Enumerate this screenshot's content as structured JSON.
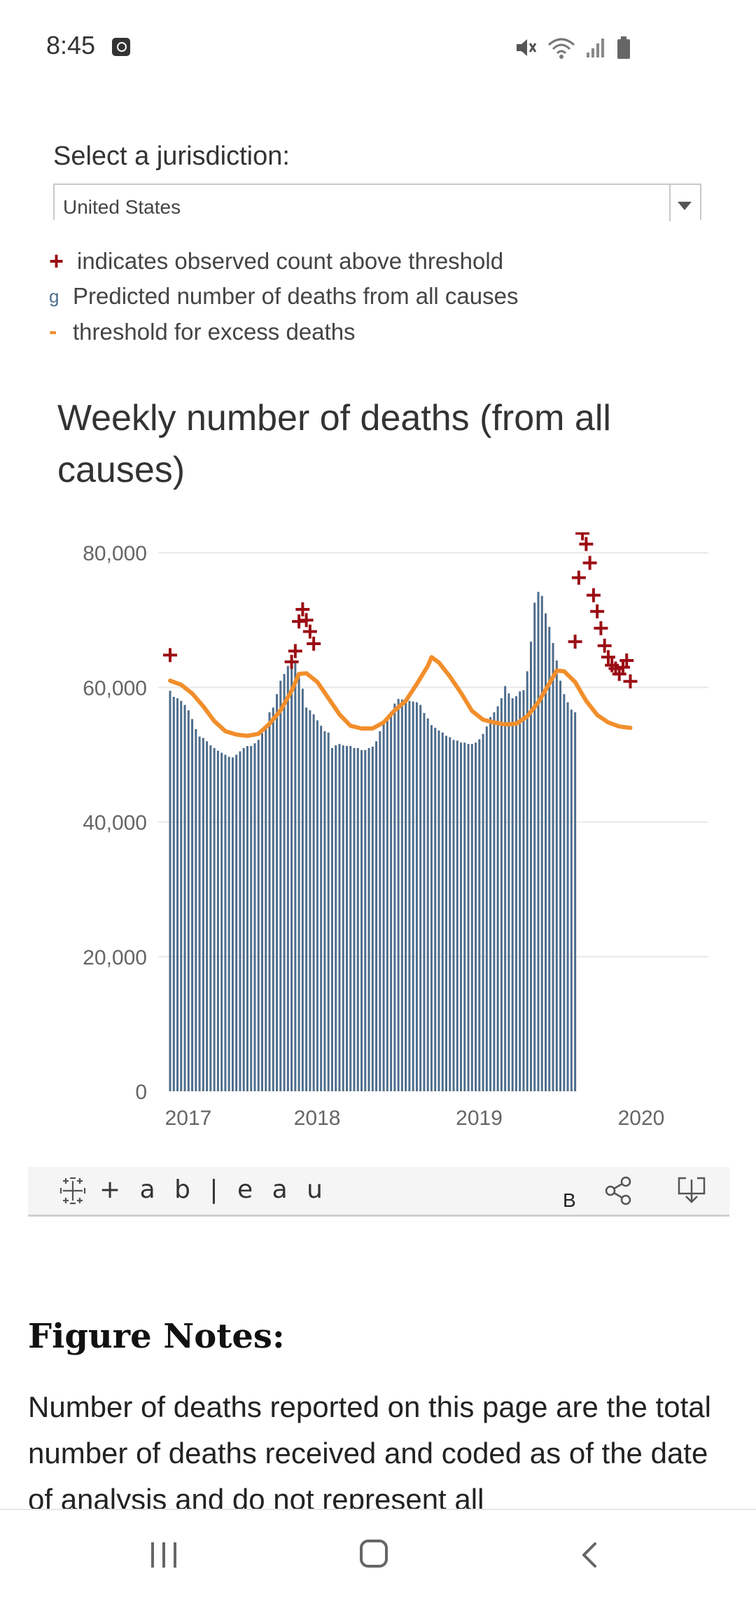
{
  "status_bar": {
    "time": "8:45",
    "icons": [
      "alarm-icon",
      "mute-icon",
      "wifi-icon",
      "signal-icon",
      "battery-icon"
    ]
  },
  "jurisdiction": {
    "label": "Select a jurisdiction:",
    "selected": "United States"
  },
  "legend": [
    {
      "mark": "+",
      "text": "indicates observed count above threshold",
      "color": "#9b0d14"
    },
    {
      "mark": "g",
      "text": "Predicted number of deaths from all causes",
      "color": "#4e6d8c"
    },
    {
      "mark": "-",
      "text": "threshold for excess deaths",
      "color": "#f28e2b"
    }
  ],
  "colors": {
    "bar": "#4e6d8c",
    "threshold": "#f28e2b",
    "marker": "#9b0d14",
    "gridline": "#e8e8e8"
  },
  "chart_data": {
    "type": "bar",
    "title": "Weekly number of deaths (from all causes)",
    "ylim": [
      0,
      82000
    ],
    "y_ticks": [
      0,
      20000,
      40000,
      60000,
      80000
    ],
    "y_tick_labels": [
      "0",
      "20,000",
      "40,000",
      "60,000",
      "80,000"
    ],
    "x_tick_labels": [
      {
        "label": "2017",
        "week": 0
      },
      {
        "label": "2018",
        "week": 35
      },
      {
        "label": "2019",
        "week": 79
      },
      {
        "label": "2020",
        "week": 123
      }
    ],
    "series": [
      {
        "name": "Predicted number of deaths from all causes",
        "type": "bar",
        "values": [
          59500,
          58600,
          58400,
          58000,
          57400,
          56600,
          55300,
          53800,
          52700,
          52500,
          52000,
          51400,
          51000,
          50600,
          50300,
          50000,
          49700,
          49600,
          50000,
          50500,
          51000,
          51300,
          51300,
          51700,
          52200,
          53200,
          54400,
          56300,
          57000,
          59000,
          61000,
          62000,
          63200,
          64200,
          63700,
          61800,
          59800,
          57000,
          56600,
          56000,
          55100,
          54300,
          53500,
          53300,
          51000,
          51400,
          51600,
          51400,
          51300,
          51300,
          51000,
          51000,
          50700,
          50700,
          51000,
          51200,
          52000,
          53500,
          54900,
          55600,
          56400,
          57600,
          58300,
          58200,
          58100,
          58000,
          57900,
          57800,
          57400,
          56200,
          55400,
          54400,
          54000,
          53600,
          53300,
          52800,
          52600,
          52200,
          52100,
          51800,
          51800,
          51600,
          51600,
          51800,
          52300,
          53100,
          54200,
          55600,
          56300,
          57200,
          58400,
          60200,
          59100,
          58400,
          58700,
          59400,
          59600,
          62400,
          66800,
          72600,
          74200,
          73600,
          71000,
          69000,
          66600,
          64000,
          61000,
          59000,
          57800,
          56700,
          56300
        ],
        "note": "pre-2020 weekly bars approximated from the chart; 2020 peak bars approximated"
      },
      {
        "name": "threshold for excess deaths",
        "type": "line",
        "points": [
          {
            "week": 0,
            "value": 61000
          },
          {
            "week": 3,
            "value": 60400
          },
          {
            "week": 6,
            "value": 59100
          },
          {
            "week": 9,
            "value": 57200
          },
          {
            "week": 12,
            "value": 55000
          },
          {
            "week": 15,
            "value": 53500
          },
          {
            "week": 18,
            "value": 53000
          },
          {
            "week": 21,
            "value": 52800
          },
          {
            "week": 24,
            "value": 53100
          },
          {
            "week": 27,
            "value": 54600
          },
          {
            "week": 30,
            "value": 56600
          },
          {
            "week": 33,
            "value": 59500
          },
          {
            "week": 35,
            "value": 62000
          },
          {
            "week": 37,
            "value": 62100
          },
          {
            "week": 40,
            "value": 60800
          },
          {
            "week": 43,
            "value": 58400
          },
          {
            "week": 46,
            "value": 56000
          },
          {
            "week": 49,
            "value": 54300
          },
          {
            "week": 52,
            "value": 53900
          },
          {
            "week": 55,
            "value": 53900
          },
          {
            "week": 58,
            "value": 54800
          },
          {
            "week": 61,
            "value": 56600
          },
          {
            "week": 64,
            "value": 58000
          },
          {
            "week": 67,
            "value": 60500
          },
          {
            "week": 70,
            "value": 63200
          },
          {
            "week": 71,
            "value": 64500
          },
          {
            "week": 73,
            "value": 63700
          },
          {
            "week": 76,
            "value": 61600
          },
          {
            "week": 79,
            "value": 59200
          },
          {
            "week": 82,
            "value": 56500
          },
          {
            "week": 85,
            "value": 55200
          },
          {
            "week": 88,
            "value": 54800
          },
          {
            "week": 91,
            "value": 54500
          },
          {
            "week": 94,
            "value": 54600
          },
          {
            "week": 97,
            "value": 55700
          },
          {
            "week": 100,
            "value": 57800
          },
          {
            "week": 103,
            "value": 60600
          },
          {
            "week": 105,
            "value": 62500
          },
          {
            "week": 107,
            "value": 62400
          },
          {
            "week": 110,
            "value": 60800
          },
          {
            "week": 113,
            "value": 58000
          },
          {
            "week": 116,
            "value": 55900
          },
          {
            "week": 119,
            "value": 54800
          },
          {
            "week": 122,
            "value": 54200
          },
          {
            "week": 125,
            "value": 54000
          }
        ]
      },
      {
        "name": "indicates observed count above threshold",
        "type": "scatter",
        "points": [
          {
            "week": 0,
            "value": 64800
          },
          {
            "week": 33,
            "value": 63800
          },
          {
            "week": 34,
            "value": 65400
          },
          {
            "week": 35,
            "value": 69800
          },
          {
            "week": 36,
            "value": 71600
          },
          {
            "week": 37,
            "value": 70000
          },
          {
            "week": 38,
            "value": 68300
          },
          {
            "week": 39,
            "value": 66500
          },
          {
            "week": 110,
            "value": 66800
          },
          {
            "week": 111,
            "value": 76300
          },
          {
            "week": 112,
            "value": 82900
          },
          {
            "week": 113,
            "value": 81300
          },
          {
            "week": 114,
            "value": 78500
          },
          {
            "week": 115,
            "value": 73700
          },
          {
            "week": 116,
            "value": 71300
          },
          {
            "week": 117,
            "value": 68800
          },
          {
            "week": 118,
            "value": 66200
          },
          {
            "week": 119,
            "value": 64500
          },
          {
            "week": 120,
            "value": 63300
          },
          {
            "week": 121,
            "value": 62800
          },
          {
            "week": 122,
            "value": 62000
          },
          {
            "week": 123,
            "value": 63000
          },
          {
            "week": 124,
            "value": 64000
          },
          {
            "week": 125,
            "value": 60900
          }
        ]
      }
    ]
  },
  "tableau": {
    "wordmark": "+ a b | e a u",
    "b_label": "B",
    "icons": [
      "tableau-logo-icon",
      "share-icon",
      "download-icon"
    ]
  },
  "notes": {
    "heading": "Figure Notes:",
    "text": "Number of deaths reported on this page are the total number of deaths received and coded as of the date of analysis and do not represent all"
  },
  "nav": {
    "icons": [
      "recent-apps-icon",
      "home-icon",
      "back-icon"
    ]
  }
}
